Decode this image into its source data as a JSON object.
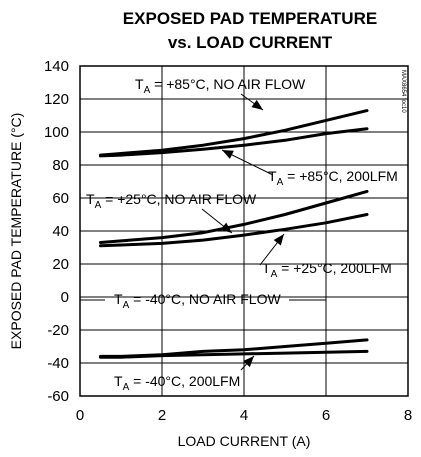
{
  "chart_data": {
    "type": "line",
    "title_line1": "EXPOSED PAD TEMPERATURE",
    "title_line2": "vs. LOAD CURRENT",
    "xlabel": "LOAD CURRENT (A)",
    "ylabel": "EXPOSED PAD TEMPERATURE (°C)",
    "xlim": [
      0,
      8
    ],
    "ylim": [
      -60,
      140
    ],
    "x_ticks": [
      "0",
      "2",
      "4",
      "6",
      "8"
    ],
    "y_ticks": [
      "-60",
      "-40",
      "-20",
      "0",
      "20",
      "40",
      "60",
      "80",
      "100",
      "120",
      "140"
    ],
    "grid": true,
    "watermark": "MAX8654 toc10",
    "series": [
      {
        "name": "TA = +85°C, NO AIR FLOW",
        "x": [
          0.5,
          1,
          2,
          3,
          4,
          5,
          6,
          7
        ],
        "y": [
          86,
          87,
          89,
          92,
          96,
          101,
          107,
          113
        ]
      },
      {
        "name": "TA = +85°C, 200LFM",
        "x": [
          0.5,
          1,
          2,
          3,
          4,
          5,
          6,
          7
        ],
        "y": [
          85.5,
          86,
          87.5,
          89.5,
          92,
          95,
          99,
          102
        ]
      },
      {
        "name": "TA = +25°C, NO AIR FLOW",
        "x": [
          0.5,
          1,
          2,
          3,
          4,
          5,
          6,
          7
        ],
        "y": [
          33,
          34,
          36,
          39,
          44,
          50,
          57,
          64
        ]
      },
      {
        "name": "TA = +25°C, 200LFM",
        "x": [
          0.5,
          1,
          2,
          3,
          4,
          5,
          6,
          7
        ],
        "y": [
          31,
          31.5,
          32.5,
          34.5,
          37.5,
          41,
          45,
          50
        ]
      },
      {
        "name": "TA = -40°C, NO AIR FLOW",
        "x": [
          0.5,
          1,
          2,
          3,
          4,
          5,
          6,
          7
        ],
        "y": [
          -36,
          -36,
          -35,
          -33,
          -32,
          -30,
          -28,
          -26
        ]
      },
      {
        "name": "TA = -40°C, 200LFM",
        "x": [
          0.5,
          1,
          2,
          3,
          4,
          5,
          6,
          7
        ],
        "y": [
          -36.5,
          -36.5,
          -35.5,
          -35,
          -34.5,
          -34,
          -33.5,
          -33
        ]
      }
    ],
    "annotations": [
      {
        "sub": "A",
        "text": " = +85°C, NO AIR FLOW"
      },
      {
        "sub": "A",
        "text": " = +85°C, 200LFM"
      },
      {
        "sub": "A",
        "text": " = +25°C, NO AIR FLOW"
      },
      {
        "sub": "A",
        "text": " = +25°C, 200LFM"
      },
      {
        "sub": "A",
        "text": " = -40°C, NO AIR FLOW"
      },
      {
        "sub": "A",
        "text": " = -40°C, 200LFM"
      }
    ]
  }
}
